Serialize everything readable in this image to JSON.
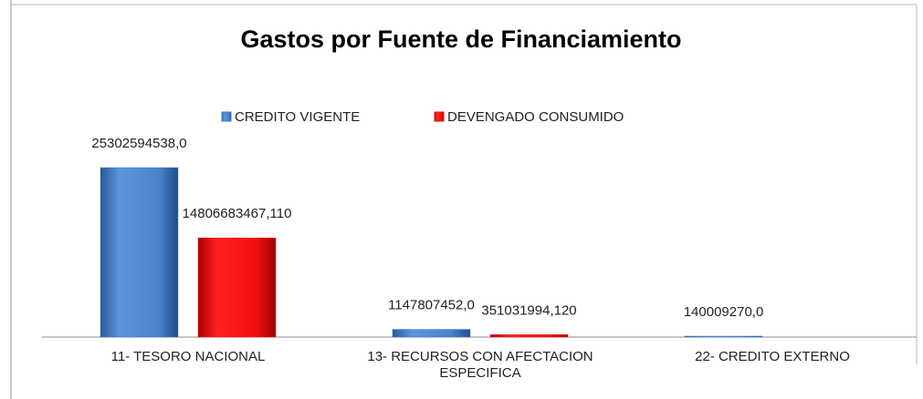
{
  "chart_data": {
    "type": "bar",
    "title": "Gastos por Fuente de Financiamiento",
    "categories": [
      "11- TESORO NACIONAL",
      "13- RECURSOS CON AFECTACION ESPECIFICA",
      "22- CREDITO EXTERNO"
    ],
    "series": [
      {
        "name": "CREDITO VIGENTE",
        "color": "#3f7bc9",
        "values": [
          25302594538.0,
          1147807452.0,
          140009270.0
        ],
        "value_labels": [
          "25302594538,0",
          "1147807452,0",
          "140009270,0"
        ]
      },
      {
        "name": "DEVENGADO CONSUMIDO",
        "color": "#e81010",
        "values": [
          14806683467.11,
          351031994.12,
          null
        ],
        "value_labels": [
          "14806683467,110",
          "351031994,120",
          null
        ]
      }
    ],
    "legend": "top"
  }
}
